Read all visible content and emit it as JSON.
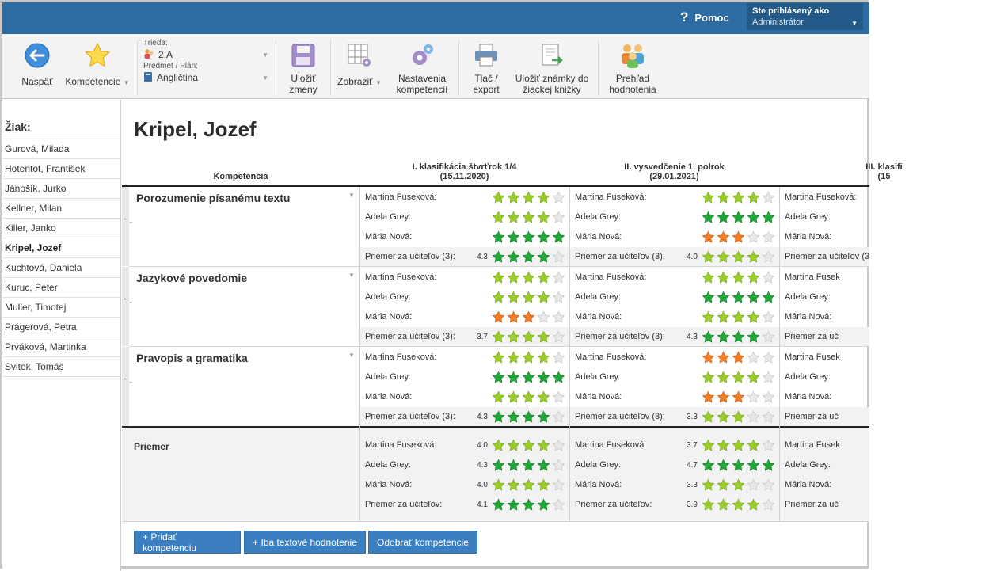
{
  "header": {
    "help_label": "Pomoc",
    "logged_in_caption": "Ste prihlásený ako",
    "user_role": "Administrátor"
  },
  "toolbar": {
    "back_label": "Naspäť",
    "competencies_label": "Kompetencie",
    "class_caption": "Trieda:",
    "class_value": "2.A",
    "subject_caption": "Predmet / Plán:",
    "subject_value": "Angličtina",
    "save_label": "Uložiť zmeny",
    "view_label": "Zobraziť",
    "settings_label": "Nastavenia kompetencií",
    "print_label": "Tlač / export",
    "save_grades_label": "Uložiť známky do žiackej knižky",
    "overview_label": "Prehľad hodnotenia"
  },
  "sidebar": {
    "title": "Žiak:",
    "students": [
      "Gurová, Milada",
      "Hotentot, František",
      "Jánošík, Jurko",
      "Kellner, Milan",
      "Killer, Janko",
      "Kripel, Jozef",
      "Kuchtová, Daniela",
      "Kuruc, Peter",
      "Muller, Timotej",
      "Prágerová, Petra",
      "Prváková, Martinka",
      "Svitek, Tomáš"
    ],
    "active_index": 5
  },
  "main": {
    "student_name": "Kripel, Jozef",
    "competency_header": "Kompetencia",
    "columns": [
      {
        "title": "I. klasifikácia štvrťrok 1/4",
        "date": "(15.11.2020)"
      },
      {
        "title": "II. vysvedčenie 1. polrok",
        "date": "(29.01.2021)"
      },
      {
        "title": "III. klasifi",
        "date": "(15"
      }
    ],
    "competencies": [
      {
        "name": "Porozumenie písanému textu",
        "rows": [
          {
            "label": "Martina Fuseková:",
            "c1": {
              "v": "",
              "s": [
                2,
                2,
                2,
                2,
                0
              ]
            },
            "c2": {
              "v": "",
              "s": [
                2,
                2,
                2,
                2,
                0
              ]
            },
            "c3": {
              "label": "Martina Fuseková:"
            }
          },
          {
            "label": "Adela Grey:",
            "c1": {
              "v": "",
              "s": [
                2,
                2,
                2,
                2,
                0
              ]
            },
            "c2": {
              "v": "",
              "s": [
                3,
                3,
                3,
                3,
                3
              ]
            },
            "c3": {
              "label": "Adela Grey:"
            }
          },
          {
            "label": "Mária Nová:",
            "c1": {
              "v": "",
              "s": [
                3,
                3,
                3,
                3,
                3
              ]
            },
            "c2": {
              "v": "",
              "s": [
                1,
                1,
                1,
                0,
                0
              ]
            },
            "c3": {
              "label": "Mária Nová:"
            }
          },
          {
            "label": "Priemer za učiteľov (3):",
            "avg": true,
            "c1": {
              "v": "4.3",
              "s": [
                3,
                3,
                3,
                3,
                0
              ]
            },
            "c2": {
              "v": "4.0",
              "s": [
                2,
                2,
                2,
                2,
                0
              ]
            },
            "c3": {
              "label": "Priemer za učiteľov (3"
            }
          }
        ]
      },
      {
        "name": "Jazykové povedomie",
        "rows": [
          {
            "label": "Martina Fuseková:",
            "c1": {
              "v": "",
              "s": [
                2,
                2,
                2,
                2,
                0
              ]
            },
            "c2": {
              "v": "",
              "s": [
                2,
                2,
                2,
                2,
                0
              ]
            },
            "c3": {
              "label": "Martina Fusek"
            }
          },
          {
            "label": "Adela Grey:",
            "c1": {
              "v": "",
              "s": [
                2,
                2,
                2,
                2,
                0
              ]
            },
            "c2": {
              "v": "",
              "s": [
                3,
                3,
                3,
                3,
                3
              ]
            },
            "c3": {
              "label": "Adela Grey:"
            }
          },
          {
            "label": "Mária Nová:",
            "c1": {
              "v": "",
              "s": [
                1,
                1,
                1,
                0,
                0
              ]
            },
            "c2": {
              "v": "",
              "s": [
                2,
                2,
                2,
                2,
                0
              ]
            },
            "c3": {
              "label": "Mária Nová:"
            }
          },
          {
            "label": "Priemer za učiteľov (3):",
            "avg": true,
            "c1": {
              "v": "3.7",
              "s": [
                2,
                2,
                2,
                2,
                0
              ]
            },
            "c2": {
              "v": "4.3",
              "s": [
                3,
                3,
                3,
                3,
                0
              ]
            },
            "c3": {
              "label": "Priemer za uč"
            }
          }
        ]
      },
      {
        "name": "Pravopis a gramatika",
        "rows": [
          {
            "label": "Martina Fuseková:",
            "c1": {
              "v": "",
              "s": [
                2,
                2,
                2,
                2,
                0
              ]
            },
            "c2": {
              "v": "",
              "s": [
                1,
                1,
                1,
                0,
                0
              ]
            },
            "c3": {
              "label": "Martina Fusek"
            }
          },
          {
            "label": "Adela Grey:",
            "c1": {
              "v": "",
              "s": [
                3,
                3,
                3,
                3,
                3
              ]
            },
            "c2": {
              "v": "",
              "s": [
                2,
                2,
                2,
                2,
                0
              ]
            },
            "c3": {
              "label": "Adela Grey:"
            }
          },
          {
            "label": "Mária Nová:",
            "c1": {
              "v": "",
              "s": [
                2,
                2,
                2,
                2,
                0
              ]
            },
            "c2": {
              "v": "",
              "s": [
                1,
                1,
                1,
                0,
                0
              ]
            },
            "c3": {
              "label": "Mária Nová:"
            }
          },
          {
            "label": "Priemer za učiteľov (3):",
            "avg": true,
            "c1": {
              "v": "4.3",
              "s": [
                3,
                3,
                3,
                3,
                0
              ]
            },
            "c2": {
              "v": "3.3",
              "s": [
                2,
                2,
                2,
                0,
                0
              ]
            },
            "c3": {
              "label": "Priemer za uč"
            }
          }
        ]
      }
    ],
    "summary": {
      "name": "Priemer",
      "rows": [
        {
          "label": "Martina Fuseková:",
          "c1": {
            "v": "4.0",
            "s": [
              2,
              2,
              2,
              2,
              0
            ]
          },
          "c2": {
            "v": "3.7",
            "s": [
              2,
              2,
              2,
              2,
              0
            ]
          },
          "c3": {
            "label": "Martina Fusek"
          }
        },
        {
          "label": "Adela Grey:",
          "c1": {
            "v": "4.3",
            "s": [
              3,
              3,
              3,
              3,
              0
            ]
          },
          "c2": {
            "v": "4.7",
            "s": [
              3,
              3,
              3,
              3,
              3
            ]
          },
          "c3": {
            "label": "Adela Grey:"
          }
        },
        {
          "label": "Mária Nová:",
          "c1": {
            "v": "4.0",
            "s": [
              2,
              2,
              2,
              2,
              0
            ]
          },
          "c2": {
            "v": "3.3",
            "s": [
              2,
              2,
              2,
              0,
              0
            ]
          },
          "c3": {
            "label": "Mária Nová:"
          }
        },
        {
          "label": "Priemer za učiteľov:",
          "c1": {
            "v": "4.1",
            "s": [
              3,
              3,
              3,
              3,
              0
            ]
          },
          "c2": {
            "v": "3.9",
            "s": [
              2,
              2,
              2,
              2,
              0
            ]
          },
          "c3": {
            "label": "Priemer za uč"
          }
        }
      ]
    },
    "buttons": {
      "add_competency": "+ Pridať kompetenciu",
      "text_only": "+ Iba textové hodnotenie",
      "remove_competency": "Odobrať kompetencie"
    }
  },
  "colors": {
    "header_bg": "#2e6da4",
    "star_green_dark": "#22a63a",
    "star_green_light": "#9ccc2b",
    "star_orange": "#f07c26",
    "star_empty": "#e8e8e8",
    "button_blue": "#3c7fc1"
  }
}
